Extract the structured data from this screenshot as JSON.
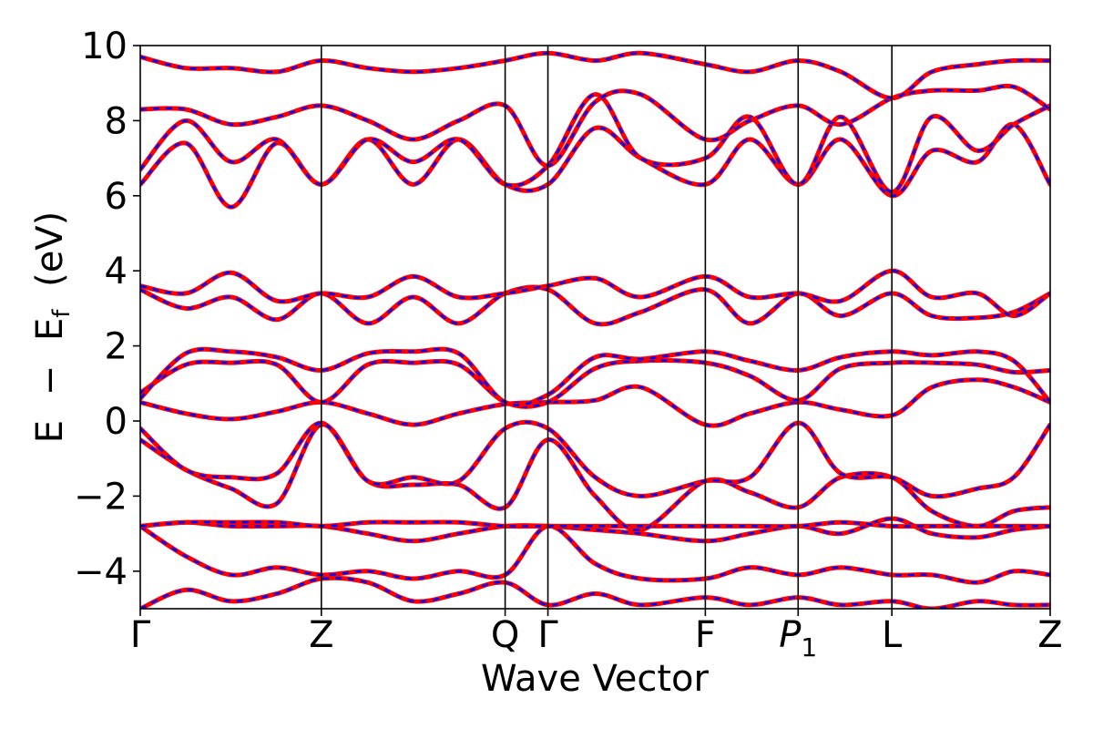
{
  "colors": {
    "calc_a": "#ff0000",
    "calc_b": "#0000ff",
    "axes": "#000000"
  },
  "chart_data": {
    "type": "line",
    "title": "",
    "xlabel": "Wave Vector",
    "ylabel_parts": {
      "lead": "E",
      "minus": "−",
      "base": "E",
      "sub": "f",
      "tail": "(eV)"
    },
    "ylim": [
      -5,
      10
    ],
    "xlim": [
      0,
      1
    ],
    "yticks": [
      {
        "value": 10,
        "label": "10"
      },
      {
        "value": 8,
        "label": "8"
      },
      {
        "value": 6,
        "label": "6"
      },
      {
        "value": 4,
        "label": "4"
      },
      {
        "value": 2,
        "label": "2"
      },
      {
        "value": 0,
        "label": "0"
      },
      {
        "value": -2,
        "label": "−2"
      },
      {
        "value": -4,
        "label": "−4"
      }
    ],
    "high_symmetry_points": [
      {
        "x": 0.0,
        "label": "Γ"
      },
      {
        "x": 0.199,
        "label": "Z"
      },
      {
        "x": 0.401,
        "label": "Q"
      },
      {
        "x": 0.448,
        "label": "Γ"
      },
      {
        "x": 0.621,
        "label": "F"
      },
      {
        "x": 0.723,
        "label": "P",
        "sub": "1",
        "italic": true
      },
      {
        "x": 0.826,
        "label": "L"
      },
      {
        "x": 1.0,
        "label": "Z"
      }
    ],
    "grid": false,
    "legend": "none",
    "style_note": "red solid band overlaid by blue dashed band (identical values)",
    "series": [
      {
        "x": [
          0,
          0.05,
          0.1,
          0.15,
          0.199,
          0.25,
          0.3,
          0.35,
          0.401,
          0.448,
          0.5,
          0.55,
          0.621,
          0.67,
          0.723,
          0.77,
          0.826,
          0.87,
          0.92,
          0.96,
          1.0
        ],
        "values": [
          -5.0,
          -4.5,
          -4.8,
          -4.6,
          -4.2,
          -4.3,
          -4.8,
          -4.6,
          -4.3,
          -4.9,
          -4.6,
          -4.9,
          -4.7,
          -4.9,
          -4.7,
          -4.9,
          -4.8,
          -5.0,
          -4.8,
          -4.9,
          -4.9
        ]
      },
      {
        "x": [
          0,
          0.05,
          0.1,
          0.15,
          0.199,
          0.25,
          0.3,
          0.35,
          0.401,
          0.448,
          0.5,
          0.55,
          0.621,
          0.67,
          0.723,
          0.77,
          0.826,
          0.87,
          0.92,
          0.96,
          1.0
        ],
        "values": [
          -2.8,
          -3.6,
          -4.1,
          -3.9,
          -4.1,
          -4.0,
          -4.2,
          -4.0,
          -4.1,
          -2.8,
          -3.8,
          -4.2,
          -4.2,
          -3.9,
          -4.1,
          -3.9,
          -4.1,
          -4.1,
          -4.3,
          -4.0,
          -4.1
        ]
      },
      {
        "x": [
          0,
          0.05,
          0.1,
          0.15,
          0.199,
          0.25,
          0.3,
          0.35,
          0.401,
          0.448,
          0.5,
          0.55,
          0.621,
          0.67,
          0.723,
          0.77,
          0.826,
          0.87,
          0.92,
          0.96,
          1.0
        ],
        "values": [
          -2.8,
          -2.7,
          -2.8,
          -2.8,
          -2.8,
          -3.0,
          -3.2,
          -3.0,
          -2.8,
          -2.8,
          -2.9,
          -3.0,
          -3.2,
          -3.0,
          -2.8,
          -3.0,
          -2.6,
          -3.0,
          -3.1,
          -2.9,
          -2.8
        ]
      },
      {
        "x": [
          0,
          0.05,
          0.1,
          0.15,
          0.199,
          0.25,
          0.3,
          0.35,
          0.401,
          0.448,
          0.5,
          0.55,
          0.621,
          0.67,
          0.723,
          0.77,
          0.826,
          0.87,
          0.92,
          0.96,
          1.0
        ],
        "values": [
          -2.8,
          -2.7,
          -2.7,
          -2.7,
          -2.8,
          -2.7,
          -2.7,
          -2.7,
          -2.8,
          -2.8,
          -2.8,
          -2.8,
          -2.8,
          -2.8,
          -2.8,
          -2.7,
          -2.8,
          -2.8,
          -2.8,
          -2.8,
          -2.8
        ]
      },
      {
        "x": [
          0,
          0.05,
          0.1,
          0.15,
          0.199,
          0.25,
          0.3,
          0.35,
          0.401,
          0.448,
          0.5,
          0.55,
          0.621,
          0.67,
          0.723,
          0.77,
          0.826,
          0.87,
          0.92,
          0.96,
          1.0
        ],
        "values": [
          -0.5,
          -1.3,
          -1.8,
          -2.2,
          -0.1,
          -1.6,
          -1.7,
          -1.7,
          -2.3,
          -0.5,
          -2.0,
          -2.9,
          -1.6,
          -1.9,
          -2.3,
          -1.5,
          -1.5,
          -2.4,
          -2.8,
          -2.4,
          -2.3
        ]
      },
      {
        "x": [
          0,
          0.05,
          0.1,
          0.15,
          0.199,
          0.25,
          0.3,
          0.35,
          0.401,
          0.448,
          0.5,
          0.55,
          0.621,
          0.67,
          0.723,
          0.77,
          0.826,
          0.87,
          0.92,
          0.96,
          1.0
        ],
        "values": [
          -0.2,
          -1.3,
          -1.5,
          -1.4,
          -0.05,
          -1.6,
          -1.5,
          -1.6,
          -0.2,
          -0.2,
          -1.5,
          -2.0,
          -1.6,
          -1.5,
          -0.05,
          -1.4,
          -1.5,
          -2.0,
          -1.8,
          -1.5,
          -0.1
        ]
      },
      {
        "x": [
          0,
          0.05,
          0.1,
          0.15,
          0.199,
          0.25,
          0.3,
          0.35,
          0.401,
          0.448,
          0.5,
          0.55,
          0.621,
          0.67,
          0.723,
          0.77,
          0.826,
          0.87,
          0.92,
          0.96,
          1.0
        ],
        "values": [
          0.5,
          0.2,
          0.05,
          0.25,
          0.5,
          0.2,
          -0.1,
          0.2,
          0.45,
          0.5,
          0.55,
          0.9,
          -0.1,
          0.2,
          0.5,
          0.3,
          0.15,
          0.9,
          1.1,
          0.9,
          0.5
        ]
      },
      {
        "x": [
          0,
          0.05,
          0.1,
          0.15,
          0.199,
          0.25,
          0.3,
          0.35,
          0.401,
          0.448,
          0.5,
          0.55,
          0.621,
          0.67,
          0.723,
          0.77,
          0.826,
          0.87,
          0.92,
          0.96,
          1.0
        ],
        "values": [
          0.75,
          1.5,
          1.55,
          1.5,
          0.5,
          1.5,
          1.55,
          1.5,
          0.5,
          0.5,
          1.4,
          1.6,
          1.55,
          1.2,
          0.55,
          1.4,
          1.55,
          1.55,
          1.5,
          1.3,
          1.35
        ]
      },
      {
        "x": [
          0,
          0.05,
          0.1,
          0.15,
          0.199,
          0.25,
          0.3,
          0.35,
          0.401,
          0.448,
          0.5,
          0.55,
          0.621,
          0.67,
          0.723,
          0.77,
          0.826,
          0.87,
          0.92,
          0.96,
          1.0
        ],
        "values": [
          0.6,
          1.8,
          1.85,
          1.7,
          1.35,
          1.8,
          1.85,
          1.8,
          0.5,
          0.7,
          1.7,
          1.65,
          1.85,
          1.6,
          1.35,
          1.7,
          1.85,
          1.75,
          1.85,
          1.6,
          0.5
        ]
      },
      {
        "x": [
          0,
          0.05,
          0.1,
          0.15,
          0.199,
          0.25,
          0.3,
          0.35,
          0.401,
          0.448,
          0.5,
          0.55,
          0.621,
          0.67,
          0.723,
          0.77,
          0.826,
          0.87,
          0.92,
          0.96,
          1.0
        ],
        "values": [
          3.5,
          3.0,
          3.3,
          2.7,
          3.4,
          2.6,
          3.3,
          2.6,
          3.4,
          3.5,
          2.6,
          2.9,
          3.5,
          2.6,
          3.4,
          2.8,
          3.4,
          2.8,
          2.75,
          2.9,
          3.4
        ]
      },
      {
        "x": [
          0,
          0.05,
          0.1,
          0.15,
          0.199,
          0.25,
          0.3,
          0.35,
          0.401,
          0.448,
          0.5,
          0.55,
          0.621,
          0.67,
          0.723,
          0.77,
          0.826,
          0.87,
          0.92,
          0.96,
          1.0
        ],
        "values": [
          3.6,
          3.4,
          3.95,
          3.2,
          3.4,
          3.3,
          3.85,
          3.3,
          3.4,
          3.6,
          3.8,
          3.3,
          3.85,
          3.3,
          3.4,
          3.2,
          4.0,
          3.3,
          3.4,
          2.8,
          3.4
        ]
      },
      {
        "x": [
          0,
          0.05,
          0.1,
          0.15,
          0.199,
          0.25,
          0.3,
          0.35,
          0.401,
          0.448,
          0.5,
          0.55,
          0.621,
          0.67,
          0.723,
          0.77,
          0.826,
          0.87,
          0.92,
          0.96,
          1.0
        ],
        "values": [
          6.3,
          7.4,
          5.7,
          7.4,
          6.3,
          7.5,
          6.3,
          7.5,
          6.3,
          6.3,
          7.8,
          7.0,
          6.3,
          7.5,
          6.3,
          7.5,
          6.0,
          7.2,
          6.9,
          7.9,
          6.3
        ]
      },
      {
        "x": [
          0,
          0.05,
          0.1,
          0.15,
          0.199,
          0.25,
          0.3,
          0.35,
          0.401,
          0.448,
          0.5,
          0.55,
          0.621,
          0.67,
          0.723,
          0.77,
          0.826,
          0.87,
          0.92,
          0.96,
          1.0
        ],
        "values": [
          6.7,
          8.0,
          6.9,
          7.5,
          6.3,
          7.5,
          6.9,
          7.5,
          6.3,
          6.8,
          8.7,
          7.0,
          7.0,
          8.1,
          6.3,
          8.1,
          6.1,
          8.1,
          7.2,
          7.9,
          8.4
        ]
      },
      {
        "x": [
          0,
          0.05,
          0.1,
          0.15,
          0.199,
          0.25,
          0.3,
          0.35,
          0.401,
          0.448,
          0.5,
          0.55,
          0.621,
          0.67,
          0.723,
          0.77,
          0.826,
          0.87,
          0.92,
          0.96,
          1.0
        ],
        "values": [
          8.3,
          8.3,
          7.9,
          8.1,
          8.4,
          8.0,
          7.5,
          8.0,
          8.4,
          6.8,
          8.5,
          8.7,
          7.5,
          8.0,
          8.4,
          7.9,
          8.6,
          8.8,
          8.8,
          8.9,
          8.3
        ]
      },
      {
        "x": [
          0,
          0.05,
          0.1,
          0.15,
          0.199,
          0.25,
          0.3,
          0.35,
          0.401,
          0.448,
          0.5,
          0.55,
          0.621,
          0.67,
          0.723,
          0.77,
          0.826,
          0.87,
          0.92,
          0.96,
          1.0
        ],
        "values": [
          9.7,
          9.4,
          9.4,
          9.3,
          9.6,
          9.4,
          9.3,
          9.4,
          9.6,
          9.8,
          9.6,
          9.8,
          9.5,
          9.3,
          9.6,
          9.3,
          8.6,
          9.3,
          9.5,
          9.6,
          9.6
        ]
      }
    ]
  }
}
